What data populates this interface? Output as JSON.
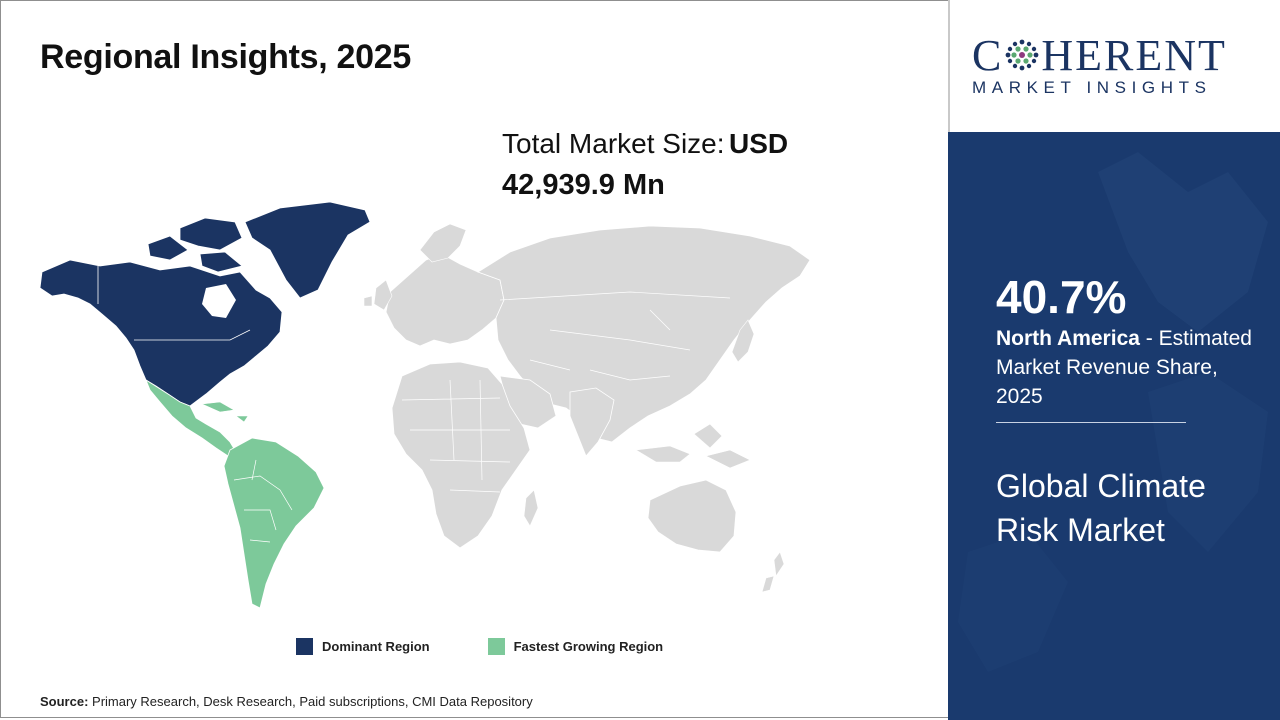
{
  "title": "Regional Insights, 2025",
  "market_size": {
    "label": "Total Market Size:",
    "unit_prefix": "USD",
    "value": "42,939.9 Mn"
  },
  "map": {
    "dominant_region": "North America",
    "fastest_growing_region": "Latin America",
    "colors": {
      "dominant": "#1b3462",
      "fastest_growing": "#7dc99a",
      "other": "#d9d9d9",
      "country_border": "#ffffff"
    }
  },
  "legend": {
    "dominant_label": "Dominant Region",
    "fastest_label": "Fastest Growing Region"
  },
  "source": {
    "label": "Source:",
    "text": "Primary Research, Desk Research, Paid subscriptions, CMI Data Repository"
  },
  "logo": {
    "main_before": "C",
    "main_after": "HERENT",
    "sub": "MARKET INSIGHTS"
  },
  "highlight": {
    "share": "40.7%",
    "region": "North America",
    "desc": "- Estimated Market Revenue Share, 2025",
    "market_name": "Global Climate Risk Market"
  }
}
